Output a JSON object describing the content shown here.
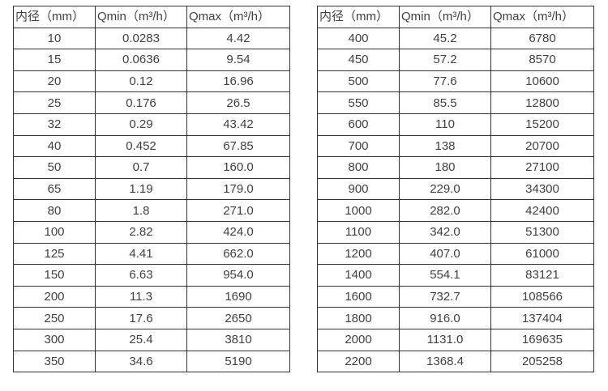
{
  "page": {
    "background": "#ffffff",
    "border_color": "#333333",
    "text_color": "#404040"
  },
  "tables": [
    {
      "name": "flow-table-small-diameters",
      "headers": [
        "内径（mm）",
        "Qmin（m³/h）",
        "Qmax（m³/h）"
      ],
      "rows": [
        [
          "10",
          "0.0283",
          "4.42"
        ],
        [
          "15",
          "0.0636",
          "9.54"
        ],
        [
          "20",
          "0.12",
          "16.96"
        ],
        [
          "25",
          "0.176",
          "26.5"
        ],
        [
          "32",
          "0.29",
          "43.42"
        ],
        [
          "40",
          "0.452",
          "67.85"
        ],
        [
          "50",
          "0.7",
          "160.0"
        ],
        [
          "65",
          "1.19",
          "179.0"
        ],
        [
          "80",
          "1.8",
          "271.0"
        ],
        [
          "100",
          "2.82",
          "424.0"
        ],
        [
          "125",
          "4.41",
          "662.0"
        ],
        [
          "150",
          "6.63",
          "954.0"
        ],
        [
          "200",
          "11.3",
          "1690"
        ],
        [
          "250",
          "17.6",
          "2650"
        ],
        [
          "300",
          "25.4",
          "3810"
        ],
        [
          "350",
          "34.6",
          "5190"
        ]
      ]
    },
    {
      "name": "flow-table-large-diameters",
      "headers": [
        "内径（mm）",
        "Qmin（m³/h）",
        "Qmax（m³/h）"
      ],
      "rows": [
        [
          "400",
          "45.2",
          "6780"
        ],
        [
          "450",
          "57.2",
          "8570"
        ],
        [
          "500",
          "77.6",
          "10600"
        ],
        [
          "550",
          "85.5",
          "12800"
        ],
        [
          "600",
          "110",
          "15200"
        ],
        [
          "700",
          "138",
          "20700"
        ],
        [
          "800",
          "180",
          "27100"
        ],
        [
          "900",
          "229.0",
          "34300"
        ],
        [
          "1000",
          "282.0",
          "42400"
        ],
        [
          "1100",
          "342.0",
          "51300"
        ],
        [
          "1200",
          "407.0",
          "61000"
        ],
        [
          "1400",
          "554.1",
          "83121"
        ],
        [
          "1600",
          "732.7",
          "108566"
        ],
        [
          "1800",
          "916.0",
          "137404"
        ],
        [
          "2000",
          "1131.0",
          "169635"
        ],
        [
          "2200",
          "1368.4",
          "205258"
        ]
      ]
    }
  ],
  "chart_data": [
    {
      "type": "table",
      "title": "",
      "columns": [
        "内径（mm）",
        "Qmin（m³/h）",
        "Qmax（m³/h）"
      ],
      "rows": [
        [
          10,
          0.0283,
          4.42
        ],
        [
          15,
          0.0636,
          9.54
        ],
        [
          20,
          0.12,
          16.96
        ],
        [
          25,
          0.176,
          26.5
        ],
        [
          32,
          0.29,
          43.42
        ],
        [
          40,
          0.452,
          67.85
        ],
        [
          50,
          0.7,
          160.0
        ],
        [
          65,
          1.19,
          179.0
        ],
        [
          80,
          1.8,
          271.0
        ],
        [
          100,
          2.82,
          424.0
        ],
        [
          125,
          4.41,
          662.0
        ],
        [
          150,
          6.63,
          954.0
        ],
        [
          200,
          11.3,
          1690
        ],
        [
          250,
          17.6,
          2650
        ],
        [
          300,
          25.4,
          3810
        ],
        [
          350,
          34.6,
          5190
        ]
      ]
    },
    {
      "type": "table",
      "title": "",
      "columns": [
        "内径（mm）",
        "Qmin（m³/h）",
        "Qmax（m³/h）"
      ],
      "rows": [
        [
          400,
          45.2,
          6780
        ],
        [
          450,
          57.2,
          8570
        ],
        [
          500,
          77.6,
          10600
        ],
        [
          550,
          85.5,
          12800
        ],
        [
          600,
          110,
          15200
        ],
        [
          700,
          138,
          20700
        ],
        [
          800,
          180,
          27100
        ],
        [
          900,
          229.0,
          34300
        ],
        [
          1000,
          282.0,
          42400
        ],
        [
          1100,
          342.0,
          51300
        ],
        [
          1200,
          407.0,
          61000
        ],
        [
          1400,
          554.1,
          83121
        ],
        [
          1600,
          732.7,
          108566
        ],
        [
          1800,
          916.0,
          137404
        ],
        [
          2000,
          1131.0,
          169635
        ],
        [
          2200,
          1368.4,
          205258
        ]
      ]
    }
  ]
}
